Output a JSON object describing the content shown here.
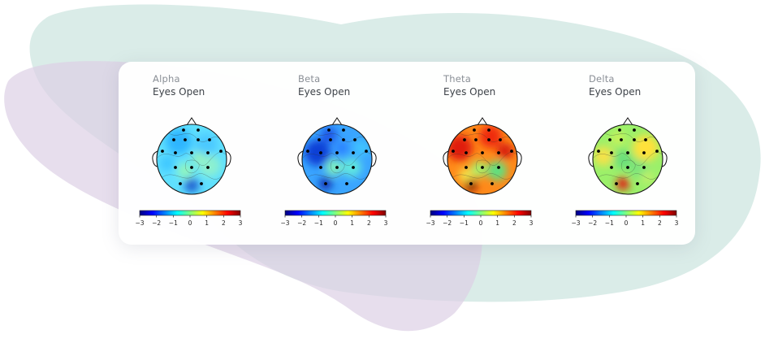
{
  "panels": [
    {
      "band": "Alpha",
      "condition": "Eyes Open",
      "scheme": "alpha",
      "colorbar_ticks": [
        "−3",
        "−2",
        "−1",
        "0",
        "1",
        "2",
        "3"
      ]
    },
    {
      "band": "Beta",
      "condition": "Eyes Open",
      "scheme": "beta",
      "colorbar_ticks": [
        "−3",
        "−2",
        "−1",
        "0",
        "1",
        "2",
        "3"
      ]
    },
    {
      "band": "Theta",
      "condition": "Eyes Open",
      "scheme": "theta",
      "colorbar_ticks": [
        "−3",
        "−2",
        "−1",
        "0",
        "1",
        "2",
        "3"
      ]
    },
    {
      "band": "Delta",
      "condition": "Eyes Open",
      "scheme": "delta",
      "colorbar_ticks": [
        "−3",
        "−2",
        "−1",
        "0",
        "1",
        "2",
        "3"
      ]
    }
  ],
  "colors": {
    "card_bg": "#ffffff",
    "blob_teal": "#cfe7e2",
    "blob_purple": "#ddd3e8",
    "colormap": [
      "#00007f",
      "#0000ff",
      "#007fff",
      "#00ffff",
      "#7fff7f",
      "#ffff00",
      "#ff7f00",
      "#ff0000",
      "#7f0000"
    ]
  }
}
